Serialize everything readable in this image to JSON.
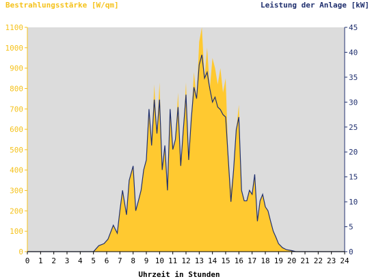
{
  "colors": {
    "plot_background": "#dcdcdc",
    "irradiance_fill": "#ffc930",
    "power_line": "#1f2f6e",
    "left_axis_text": "#f5c21b",
    "right_axis_text": "#1f2f6e"
  },
  "chart_data": {
    "type": "area",
    "title_left": "Bestrahlungsstärke [W/qm]",
    "title_right": "Leistung der Anlage [kW]",
    "xlabel": "Uhrzeit in Stunden",
    "xlim": [
      0,
      24
    ],
    "ylim_left": [
      0,
      1100
    ],
    "ylim_right": [
      0,
      45
    ],
    "x_ticks": [
      "0",
      "1",
      "2",
      "3",
      "4",
      "5",
      "6",
      "7",
      "8",
      "9",
      "10",
      "11",
      "12",
      "13",
      "14",
      "15",
      "16",
      "17",
      "18",
      "19",
      "20",
      "21",
      "22",
      "23",
      "24"
    ],
    "y_ticks_left": [
      "0",
      "100",
      "200",
      "300",
      "400",
      "500",
      "600",
      "700",
      "800",
      "900",
      "1000",
      "1100"
    ],
    "y_ticks_right": [
      "0",
      "5",
      "10",
      "15",
      "20",
      "25",
      "30",
      "35",
      "40",
      "45"
    ],
    "grid": false,
    "series": [
      {
        "name": "Bestrahlungsstärke [W/qm]",
        "axis": "left",
        "kind": "area",
        "x": [
          0,
          5.0,
          5.4,
          5.8,
          6.1,
          6.5,
          6.8,
          7.0,
          7.2,
          7.5,
          7.7,
          8.0,
          8.2,
          8.4,
          8.6,
          8.8,
          9.0,
          9.2,
          9.4,
          9.6,
          9.8,
          10.0,
          10.2,
          10.4,
          10.6,
          10.8,
          11.0,
          11.2,
          11.4,
          11.6,
          11.8,
          12.0,
          12.2,
          12.4,
          12.6,
          12.8,
          13.0,
          13.2,
          13.4,
          13.6,
          13.8,
          14.0,
          14.2,
          14.4,
          14.6,
          14.8,
          15.0,
          15.2,
          15.4,
          15.6,
          15.8,
          16.0,
          16.2,
          16.4,
          16.6,
          16.8,
          17.0,
          17.2,
          17.4,
          17.6,
          17.8,
          18.0,
          18.2,
          18.4,
          18.6,
          18.8,
          19.0,
          19.3,
          19.6,
          20.0,
          20.3,
          20.5,
          24
        ],
        "values": [
          0,
          0,
          30,
          40,
          60,
          130,
          90,
          200,
          300,
          180,
          350,
          420,
          200,
          250,
          300,
          400,
          450,
          700,
          520,
          820,
          580,
          830,
          400,
          520,
          300,
          700,
          500,
          550,
          780,
          420,
          600,
          830,
          450,
          650,
          880,
          750,
          1030,
          1100,
          850,
          1000,
          800,
          950,
          900,
          820,
          900,
          780,
          850,
          450,
          300,
          400,
          600,
          720,
          300,
          250,
          250,
          300,
          280,
          380,
          150,
          250,
          280,
          220,
          200,
          150,
          100,
          70,
          40,
          20,
          10,
          5,
          0,
          0,
          0
        ]
      },
      {
        "name": "Leistung der Anlage [kW]",
        "axis": "right",
        "kind": "line",
        "x": [
          0,
          5.0,
          5.4,
          5.8,
          6.1,
          6.5,
          6.8,
          7.0,
          7.2,
          7.5,
          7.7,
          8.0,
          8.2,
          8.4,
          8.6,
          8.8,
          9.0,
          9.2,
          9.4,
          9.6,
          9.8,
          10.0,
          10.2,
          10.4,
          10.6,
          10.8,
          11.0,
          11.2,
          11.4,
          11.6,
          11.8,
          12.0,
          12.2,
          12.4,
          12.6,
          12.8,
          13.0,
          13.2,
          13.4,
          13.6,
          13.8,
          14.0,
          14.2,
          14.4,
          14.6,
          14.8,
          15.0,
          15.2,
          15.4,
          15.6,
          15.8,
          16.0,
          16.2,
          16.4,
          16.6,
          16.8,
          17.0,
          17.2,
          17.4,
          17.6,
          17.8,
          18.0,
          18.2,
          18.4,
          18.6,
          18.8,
          19.0,
          19.3,
          19.6,
          20.0,
          20.3,
          20.5,
          24
        ],
        "values": [
          0,
          0,
          1.2,
          1.6,
          2.5,
          5.3,
          3.7,
          8.2,
          12.3,
          7.4,
          14.3,
          17.2,
          8.2,
          10.2,
          12.3,
          16.4,
          18.4,
          28.6,
          21.3,
          30.5,
          23.7,
          30.5,
          16.4,
          21.3,
          12.3,
          28.6,
          20.5,
          22.5,
          29.0,
          17.2,
          24.5,
          31.5,
          18.4,
          26.6,
          33.0,
          30.7,
          37.5,
          39.5,
          34.8,
          36.0,
          32.7,
          30.0,
          31.0,
          29.0,
          28.5,
          27.5,
          27.0,
          18.4,
          10.0,
          16.4,
          24.5,
          27.0,
          12.3,
          10.2,
          10.2,
          12.3,
          11.5,
          15.5,
          6.1,
          10.2,
          11.5,
          9.0,
          8.2,
          6.1,
          4.1,
          2.9,
          1.6,
          0.8,
          0.4,
          0.2,
          0,
          0,
          0
        ]
      }
    ]
  }
}
